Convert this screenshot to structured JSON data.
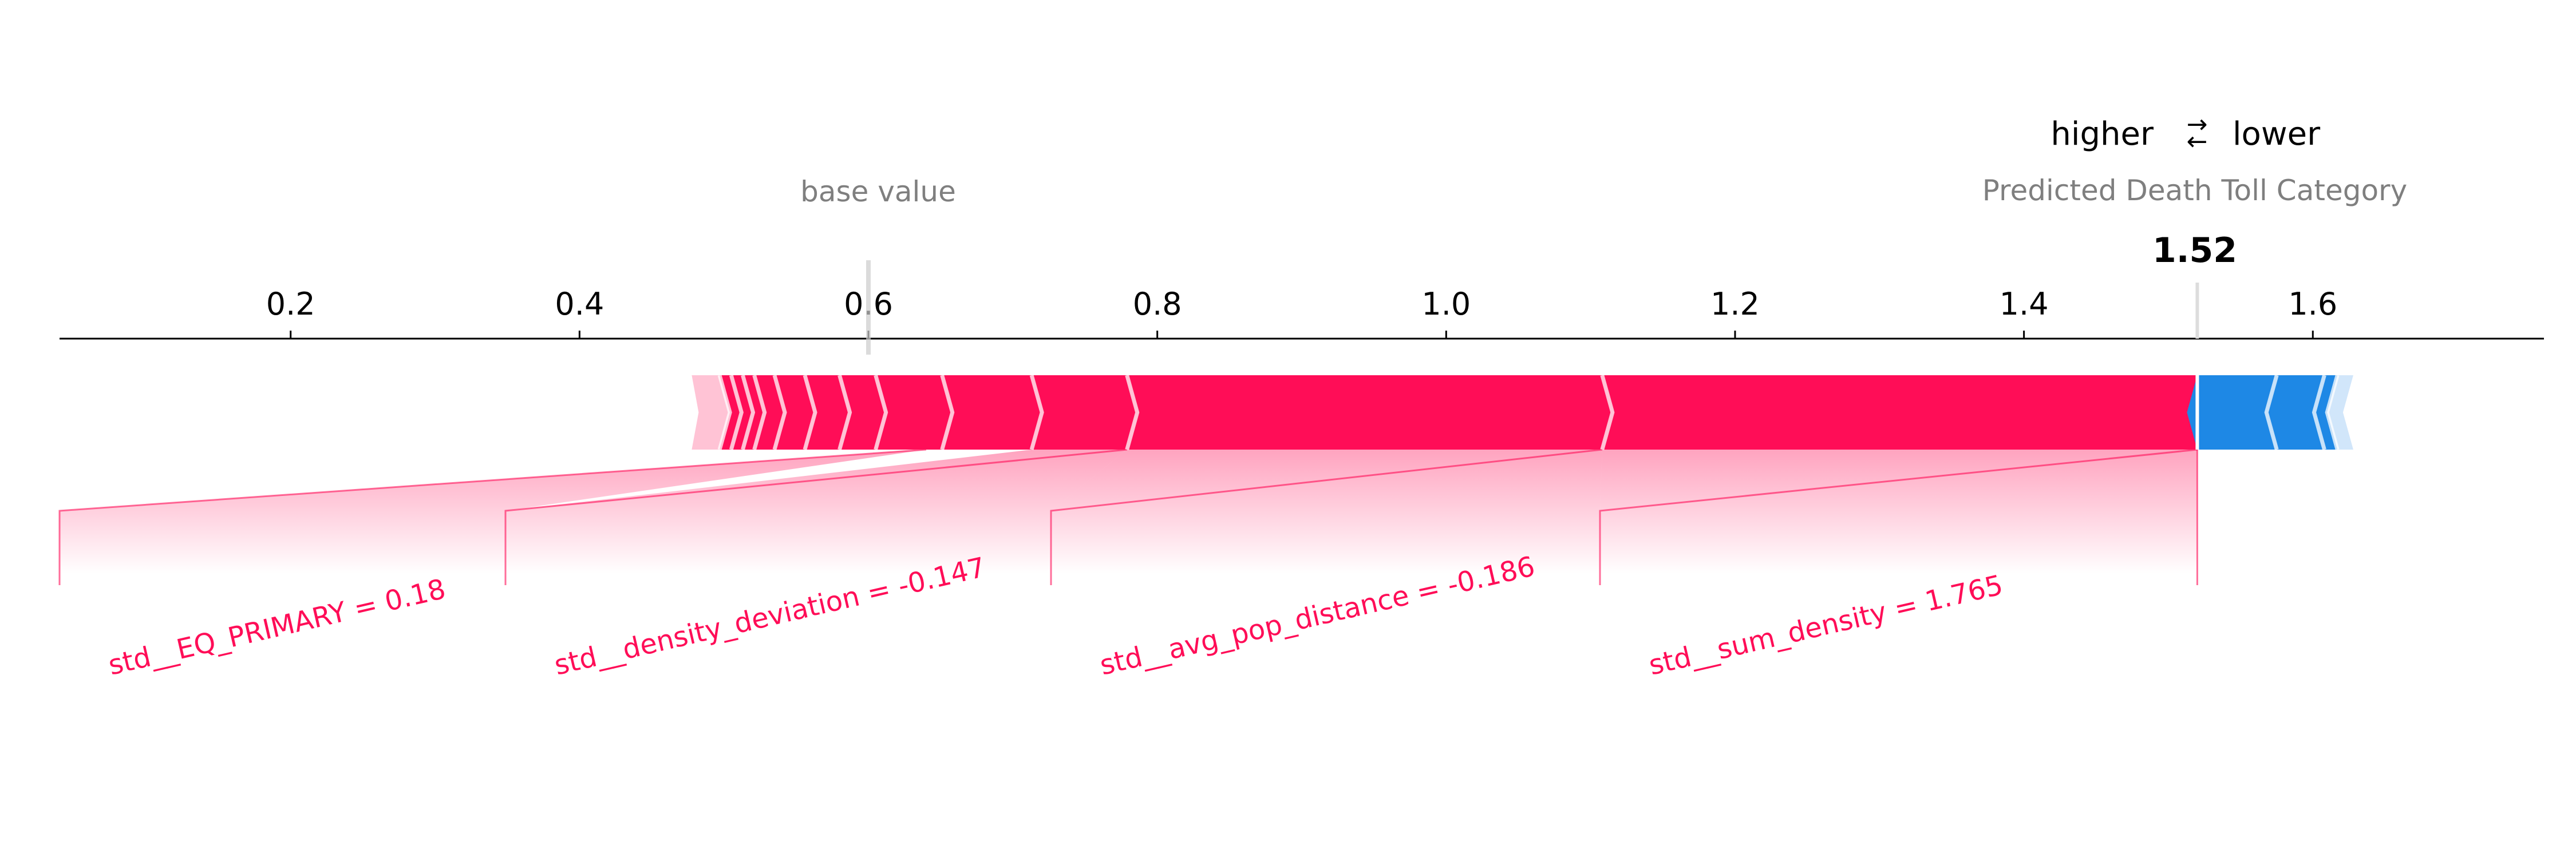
{
  "legend": {
    "higher": "higher",
    "lower": "lower",
    "arrow_right": "→",
    "arrow_left": "←"
  },
  "annotations": {
    "base_value_label": "base value",
    "output_label": "Predicted Death Toll Category",
    "output_value_text": "1.52"
  },
  "colors": {
    "positive": "#ff0d57",
    "negative": "#1e88e5",
    "positive_light": "#ffc3d5",
    "negative_light": "#d1e6fa"
  },
  "chart_data": {
    "type": "force",
    "base_value": 0.6,
    "output_value": 1.52,
    "xlim": [
      0.04,
      1.76
    ],
    "ticks": [
      0.2,
      0.4,
      0.6,
      0.8,
      1.0,
      1.2,
      1.4,
      1.6
    ],
    "tick_labels": [
      "0.2",
      "0.4",
      "0.6",
      "0.8",
      "1.0",
      "1.2",
      "1.4",
      "1.6"
    ],
    "positive_segments": [
      {
        "start": 0.488,
        "end": 0.497
      },
      {
        "start": 0.497,
        "end": 0.505
      },
      {
        "start": 0.505,
        "end": 0.513
      },
      {
        "start": 0.513,
        "end": 0.521
      },
      {
        "start": 0.521,
        "end": 0.535
      },
      {
        "start": 0.535,
        "end": 0.556
      },
      {
        "start": 0.556,
        "end": 0.58
      },
      {
        "start": 0.58,
        "end": 0.605
      },
      {
        "start": 0.605,
        "end": 0.651
      },
      {
        "start": 0.651,
        "end": 0.713
      },
      {
        "start": 0.713,
        "end": 0.779,
        "label": "std__density_deviation = -0.147"
      },
      {
        "start": 0.779,
        "end": 1.108,
        "label": "std__avg_pop_distance = -0.186"
      },
      {
        "start": 1.108,
        "end": 1.52,
        "label": "std__sum_density = 1.765"
      }
    ],
    "extra_positive_labels": [
      {
        "connector_value": 0.64,
        "label": "std__EQ_PRIMARY = 0.18"
      }
    ],
    "negative_segments": [
      {
        "start": 1.52,
        "end": 1.575
      },
      {
        "start": 1.575,
        "end": 1.608
      },
      {
        "start": 1.608,
        "end": 1.617
      },
      {
        "start": 1.617,
        "end": 1.628
      }
    ]
  }
}
